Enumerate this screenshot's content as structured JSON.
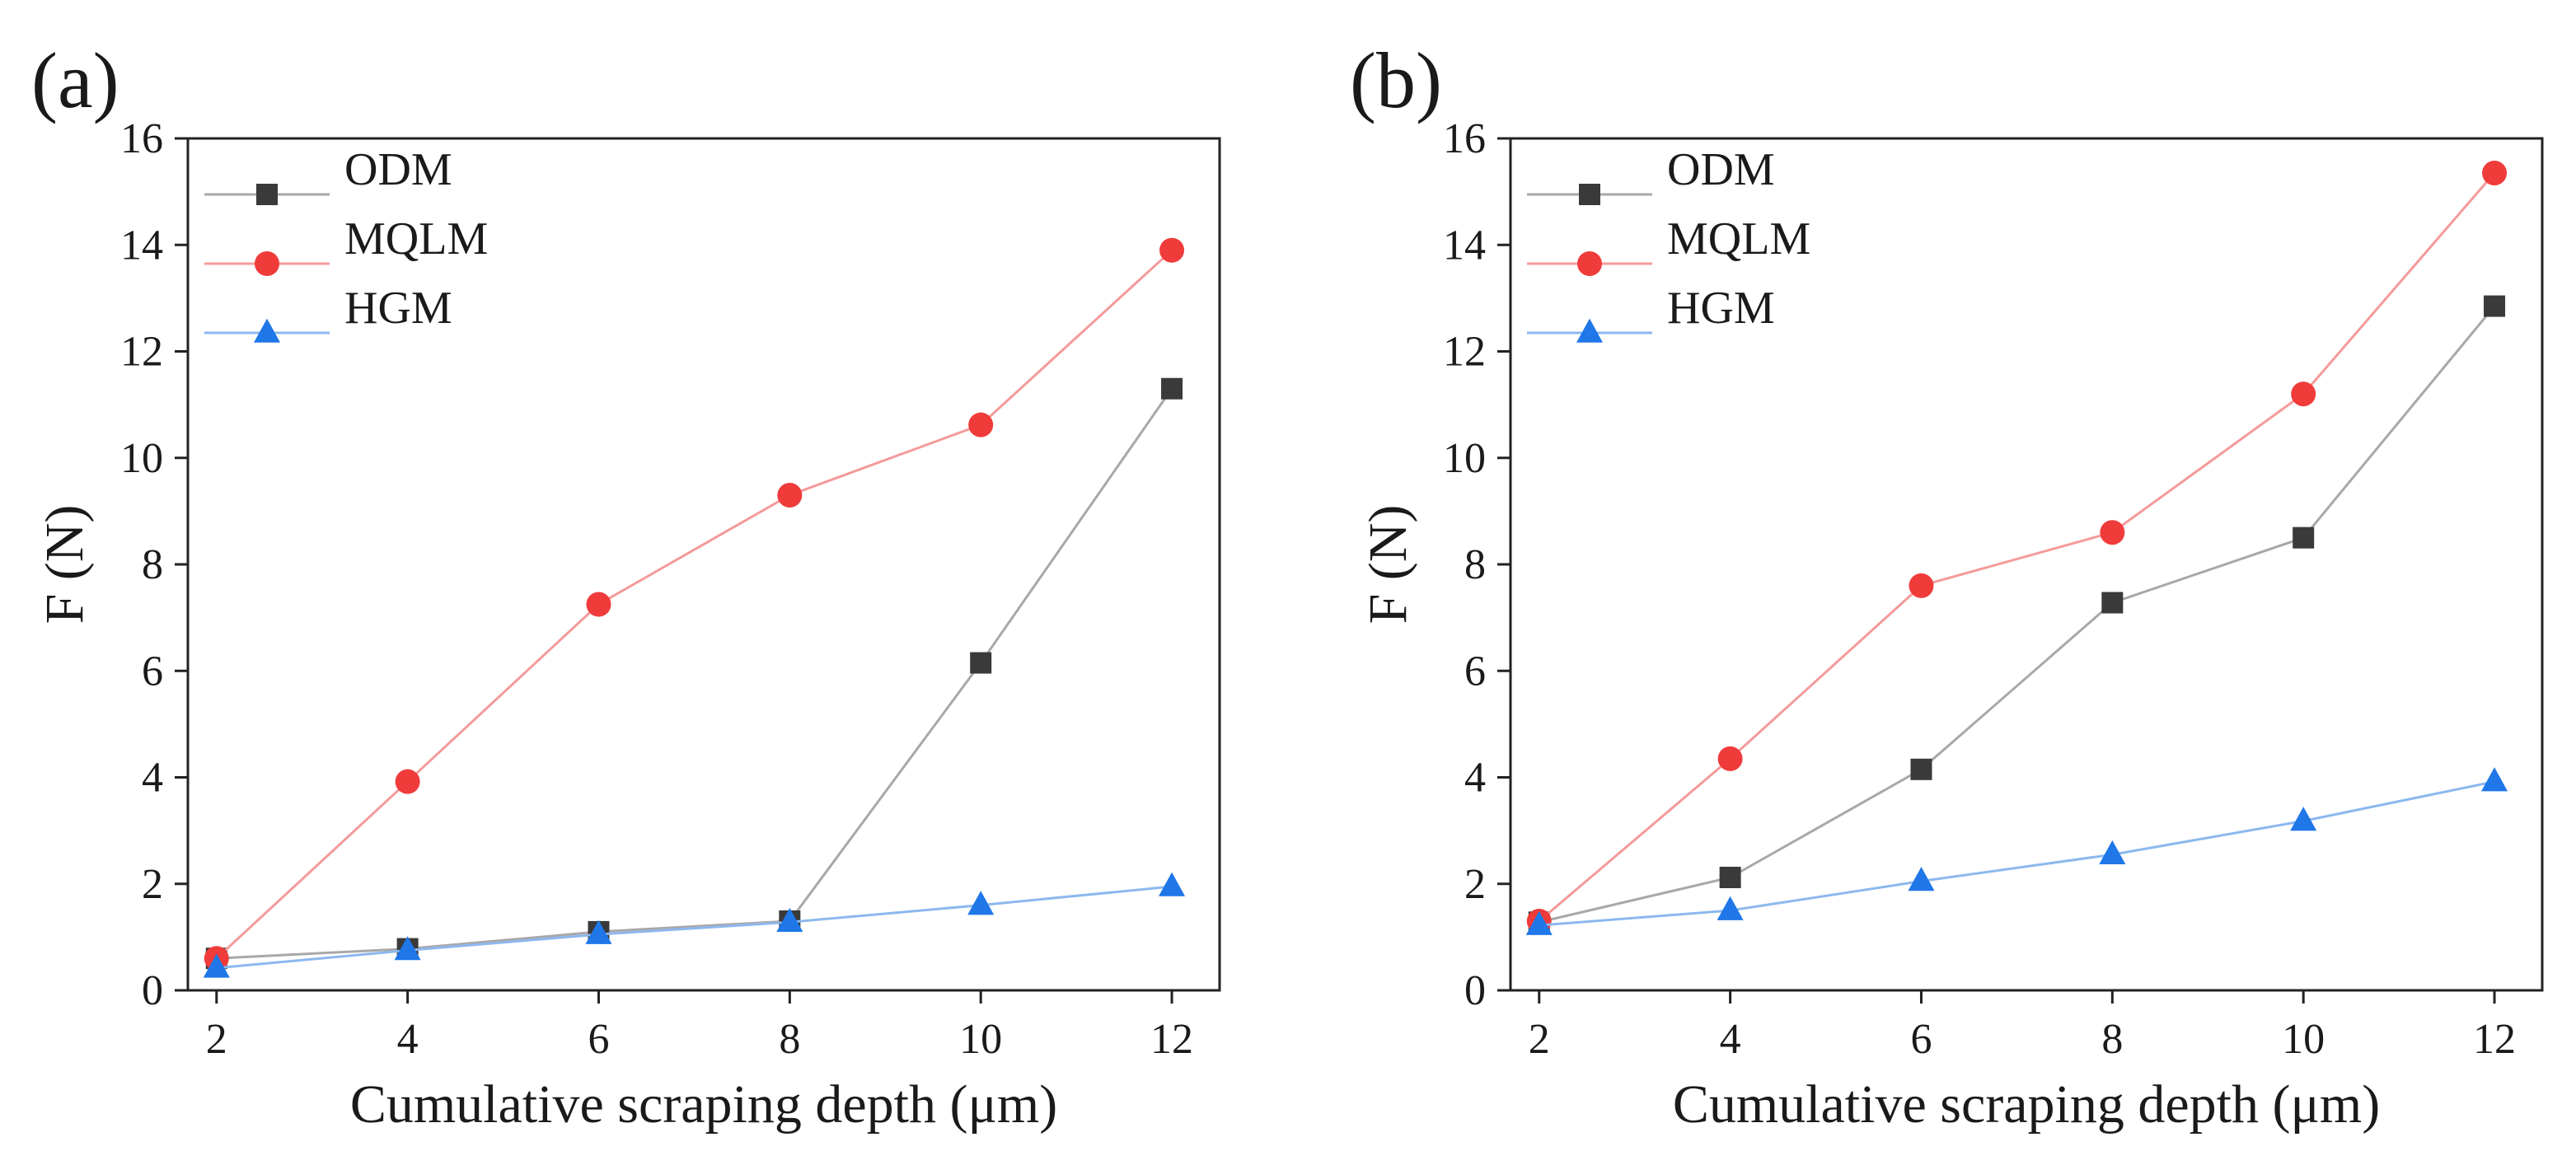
{
  "chart_data": [
    {
      "panel_label": "(a)",
      "type": "line",
      "xlabel": "Cumulative scraping depth (μm)",
      "ylabel": "F (N)",
      "x": [
        2,
        4,
        6,
        8,
        10,
        12
      ],
      "xticks": [
        2,
        4,
        6,
        8,
        10,
        12
      ],
      "yticks": [
        0,
        2,
        4,
        6,
        8,
        10,
        12,
        14,
        16
      ],
      "xlim": [
        1.7,
        12.5
      ],
      "ylim": [
        0,
        16
      ],
      "grid": false,
      "legend": "top-left",
      "series": [
        {
          "name": "ODM",
          "marker": "square",
          "color": "#3a3a3a",
          "line_color": "#a8a8a8",
          "values": [
            0.6,
            0.78,
            1.1,
            1.3,
            6.15,
            11.3
          ]
        },
        {
          "name": "MQLM",
          "marker": "circle",
          "color": "#f03b3b",
          "line_color": "#f59a9a",
          "values": [
            0.6,
            3.92,
            7.25,
            9.3,
            10.62,
            13.9
          ]
        },
        {
          "name": "HGM",
          "marker": "triangle",
          "color": "#1f77e8",
          "line_color": "#8cb8ee",
          "values": [
            0.42,
            0.75,
            1.05,
            1.28,
            1.6,
            1.95
          ]
        }
      ]
    },
    {
      "panel_label": "(b)",
      "type": "line",
      "xlabel": "Cumulative scraping depth (μm)",
      "ylabel": "F (N)",
      "x": [
        2,
        4,
        6,
        8,
        10,
        12
      ],
      "xticks": [
        2,
        4,
        6,
        8,
        10,
        12
      ],
      "yticks": [
        0,
        2,
        4,
        6,
        8,
        10,
        12,
        14,
        16
      ],
      "xlim": [
        1.7,
        12.5
      ],
      "ylim": [
        0,
        16
      ],
      "grid": false,
      "legend": "top-left",
      "series": [
        {
          "name": "ODM",
          "marker": "square",
          "color": "#3a3a3a",
          "line_color": "#a8a8a8",
          "values": [
            1.28,
            2.12,
            4.15,
            7.28,
            8.5,
            12.85
          ]
        },
        {
          "name": "MQLM",
          "marker": "circle",
          "color": "#f03b3b",
          "line_color": "#f59a9a",
          "values": [
            1.3,
            4.35,
            7.6,
            8.6,
            11.2,
            15.35
          ]
        },
        {
          "name": "HGM",
          "marker": "triangle",
          "color": "#1f77e8",
          "line_color": "#8cb8ee",
          "values": [
            1.22,
            1.5,
            2.05,
            2.55,
            3.18,
            3.92
          ]
        }
      ]
    }
  ]
}
